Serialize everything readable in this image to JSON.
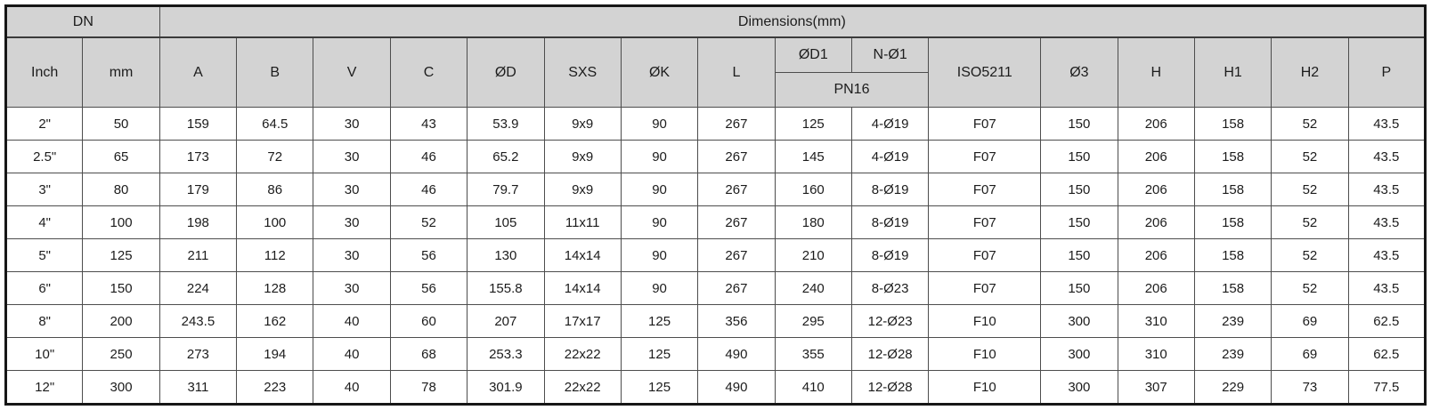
{
  "table": {
    "title_row": {
      "dn": "DN",
      "dimensions": "Dimensions(mm)"
    },
    "pn_label": "PN16",
    "columns": [
      "Inch",
      "mm",
      "A",
      "B",
      "V",
      "C",
      "ØD",
      "SXS",
      "ØK",
      "L",
      "ØD1",
      "N-Ø1",
      "ISO5211",
      "Ø3",
      "H",
      "H1",
      "H2",
      "P"
    ],
    "rows": [
      [
        "2\"",
        "50",
        "159",
        "64.5",
        "30",
        "43",
        "53.9",
        "9x9",
        "90",
        "267",
        "125",
        "4-Ø19",
        "F07",
        "150",
        "206",
        "158",
        "52",
        "43.5"
      ],
      [
        "2.5\"",
        "65",
        "173",
        "72",
        "30",
        "46",
        "65.2",
        "9x9",
        "90",
        "267",
        "145",
        "4-Ø19",
        "F07",
        "150",
        "206",
        "158",
        "52",
        "43.5"
      ],
      [
        "3\"",
        "80",
        "179",
        "86",
        "30",
        "46",
        "79.7",
        "9x9",
        "90",
        "267",
        "160",
        "8-Ø19",
        "F07",
        "150",
        "206",
        "158",
        "52",
        "43.5"
      ],
      [
        "4\"",
        "100",
        "198",
        "100",
        "30",
        "52",
        "105",
        "11x11",
        "90",
        "267",
        "180",
        "8-Ø19",
        "F07",
        "150",
        "206",
        "158",
        "52",
        "43.5"
      ],
      [
        "5\"",
        "125",
        "211",
        "112",
        "30",
        "56",
        "130",
        "14x14",
        "90",
        "267",
        "210",
        "8-Ø19",
        "F07",
        "150",
        "206",
        "158",
        "52",
        "43.5"
      ],
      [
        "6\"",
        "150",
        "224",
        "128",
        "30",
        "56",
        "155.8",
        "14x14",
        "90",
        "267",
        "240",
        "8-Ø23",
        "F07",
        "150",
        "206",
        "158",
        "52",
        "43.5"
      ],
      [
        "8\"",
        "200",
        "243.5",
        "162",
        "40",
        "60",
        "207",
        "17x17",
        "125",
        "356",
        "295",
        "12-Ø23",
        "F10",
        "300",
        "310",
        "239",
        "69",
        "62.5"
      ],
      [
        "10\"",
        "250",
        "273",
        "194",
        "40",
        "68",
        "253.3",
        "22x22",
        "125",
        "490",
        "355",
        "12-Ø28",
        "F10",
        "300",
        "310",
        "239",
        "69",
        "62.5"
      ],
      [
        "12\"",
        "300",
        "311",
        "223",
        "40",
        "78",
        "301.9",
        "22x22",
        "125",
        "490",
        "410",
        "12-Ø28",
        "F10",
        "300",
        "307",
        "229",
        "73",
        "77.5"
      ]
    ],
    "colors": {
      "header_bg": "#d3d3d3",
      "grid_line": "#4d4d4d",
      "outer_border": "#161616",
      "text": "#1c1c1c"
    }
  }
}
